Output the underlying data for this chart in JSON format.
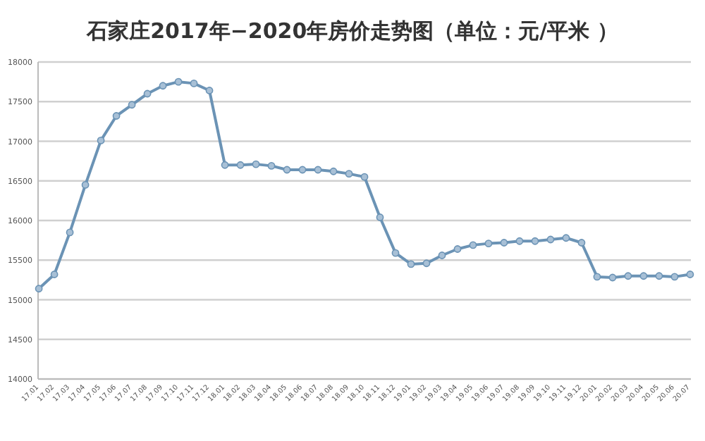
{
  "chart_data": {
    "type": "line",
    "title": "石家庄2017年−2020年房价走势图（单位：元/平米 ）",
    "categories": [
      "17.01",
      "17.02",
      "17.03",
      "17.04",
      "17.05",
      "17.06",
      "17.07",
      "17.08",
      "17.09",
      "17.10",
      "17.11",
      "17.12",
      "18.01",
      "18.02",
      "18.03",
      "18.04",
      "18.05",
      "18.06",
      "18.07",
      "18.08",
      "18.09",
      "18.10",
      "18.11",
      "18.12",
      "19.01",
      "19.02",
      "19.03",
      "19.04",
      "19.05",
      "19.06",
      "19.07",
      "19.08",
      "19.09",
      "19.10",
      "19.11",
      "19.12",
      "20.01",
      "20.02",
      "20.03",
      "20.04",
      "20.05",
      "20.06",
      "20.07"
    ],
    "series": [
      {
        "color": "#6b93b5",
        "values": [
          15140,
          15320,
          15850,
          16450,
          17010,
          17320,
          17460,
          17600,
          17700,
          17750,
          17730,
          17640,
          16700,
          16700,
          16710,
          16690,
          16640,
          16640,
          16640,
          16620,
          16590,
          16550,
          16040,
          15590,
          15450,
          15460,
          15560,
          15640,
          15690,
          15710,
          15720,
          15740,
          15740,
          15760,
          15780,
          15720,
          15290,
          15280,
          15300,
          15300,
          15300,
          15290,
          15320
        ]
      }
    ],
    "ylim": [
      14000,
      18000
    ],
    "yticks": [
      14000,
      14500,
      15000,
      15500,
      16000,
      16500,
      17000,
      17500,
      18000
    ],
    "grid": "y",
    "marker": "circle",
    "line_style": "solid"
  }
}
